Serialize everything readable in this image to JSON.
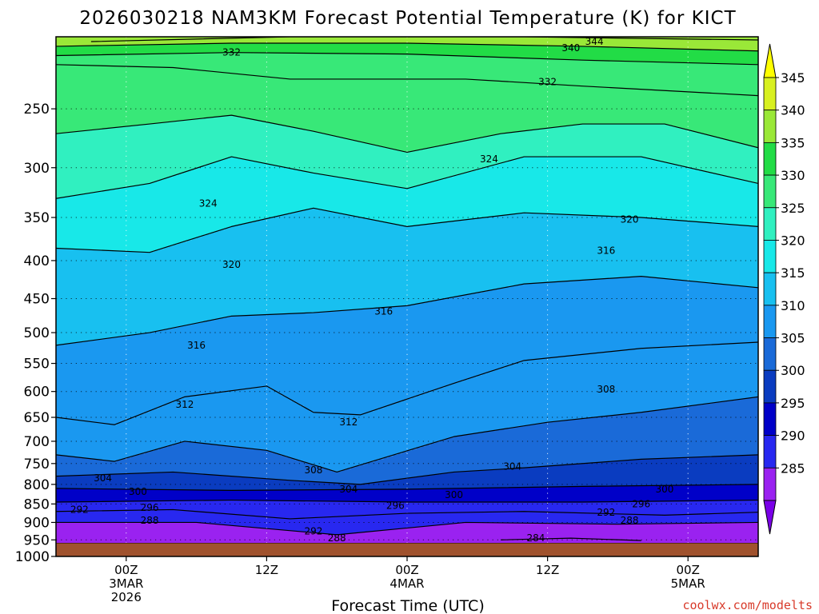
{
  "colors": {
    "ground": "#a0522d",
    "credit": "#d83a2a",
    "bands": [
      "#7a00e8",
      "#9a22f0",
      "#2828f0",
      "#0000c8",
      "#0a3cc0",
      "#1a6ad8",
      "#1a98f0",
      "#18c0f0",
      "#18e8e8",
      "#30f0c0",
      "#38e878",
      "#22dc46",
      "#9ae838",
      "#d8f020",
      "#ffff00"
    ]
  },
  "chart_data": {
    "type": "heatmap",
    "title": "2026030218 NAM3KM Forecast Potential Temperature (K) for KICT",
    "xlabel": "Forecast Time (UTC)",
    "ylabel": "",
    "x_ticks": [
      {
        "hour": 6,
        "lines": [
          "00Z",
          "3MAR",
          "2026"
        ]
      },
      {
        "hour": 18,
        "lines": [
          "12Z"
        ]
      },
      {
        "hour": 30,
        "lines": [
          "00Z",
          "4MAR"
        ]
      },
      {
        "hour": 42,
        "lines": [
          "12Z"
        ]
      },
      {
        "hour": 54,
        "lines": [
          "00Z",
          "5MAR"
        ]
      }
    ],
    "xlim": [
      0,
      60
    ],
    "y_ticks": [
      "250",
      "300",
      "350",
      "400",
      "450",
      "500",
      "550",
      "600",
      "650",
      "700",
      "750",
      "800",
      "850",
      "900",
      "950",
      "1000"
    ],
    "ylim": [
      200,
      1000
    ],
    "y_scale": "log",
    "colorbar": {
      "levels": [
        "345",
        "340",
        "335",
        "330",
        "325",
        "320",
        "315",
        "310",
        "305",
        "300",
        "295",
        "290",
        "285"
      ],
      "range": [
        280,
        350
      ],
      "interval": 5
    },
    "contour_interval": 4,
    "contours": [
      {
        "value": 344,
        "points": [
          [
            3,
            203
          ],
          [
            20,
            200
          ],
          [
            40,
            200
          ],
          [
            60,
            202
          ]
        ]
      },
      {
        "value": 340,
        "points": [
          [
            0,
            206
          ],
          [
            15,
            204
          ],
          [
            30,
            204
          ],
          [
            45,
            206
          ],
          [
            60,
            209
          ]
        ]
      },
      {
        "value": 336,
        "points": [
          [
            0,
            212
          ],
          [
            15,
            210
          ],
          [
            30,
            211
          ],
          [
            45,
            215
          ],
          [
            60,
            218
          ]
        ]
      },
      {
        "value": 332,
        "points": [
          [
            0,
            218
          ],
          [
            10,
            220
          ],
          [
            20,
            228
          ],
          [
            35,
            228
          ],
          [
            45,
            233
          ],
          [
            60,
            240
          ]
        ]
      },
      {
        "value": 328,
        "points": [
          [
            0,
            270
          ],
          [
            8,
            262
          ],
          [
            15,
            255
          ],
          [
            22,
            268
          ],
          [
            30,
            286
          ],
          [
            38,
            270
          ],
          [
            45,
            262
          ],
          [
            52,
            262
          ],
          [
            60,
            282
          ]
        ]
      },
      {
        "value": 324,
        "points": [
          [
            0,
            330
          ],
          [
            8,
            315
          ],
          [
            15,
            290
          ],
          [
            22,
            305
          ],
          [
            30,
            320
          ],
          [
            40,
            290
          ],
          [
            50,
            290
          ],
          [
            60,
            315
          ]
        ]
      },
      {
        "value": 320,
        "points": [
          [
            0,
            385
          ],
          [
            8,
            390
          ],
          [
            15,
            360
          ],
          [
            22,
            340
          ],
          [
            30,
            360
          ],
          [
            40,
            345
          ],
          [
            50,
            350
          ],
          [
            60,
            360
          ]
        ]
      },
      {
        "value": 316,
        "points": [
          [
            0,
            520
          ],
          [
            8,
            500
          ],
          [
            15,
            475
          ],
          [
            22,
            470
          ],
          [
            30,
            460
          ],
          [
            40,
            430
          ],
          [
            50,
            420
          ],
          [
            60,
            435
          ]
        ]
      },
      {
        "value": 312,
        "points": [
          [
            0,
            650
          ],
          [
            5,
            665
          ],
          [
            11,
            610
          ],
          [
            18,
            590
          ],
          [
            22,
            640
          ],
          [
            26,
            645
          ],
          [
            34,
            585
          ],
          [
            40,
            545
          ],
          [
            50,
            525
          ],
          [
            60,
            515
          ]
        ]
      },
      {
        "value": 308,
        "points": [
          [
            0,
            730
          ],
          [
            5,
            745
          ],
          [
            11,
            700
          ],
          [
            18,
            720
          ],
          [
            24,
            770
          ],
          [
            34,
            690
          ],
          [
            42,
            660
          ],
          [
            50,
            640
          ],
          [
            60,
            610
          ]
        ]
      },
      {
        "value": 304,
        "points": [
          [
            0,
            780
          ],
          [
            10,
            770
          ],
          [
            20,
            790
          ],
          [
            26,
            800
          ],
          [
            34,
            770
          ],
          [
            40,
            760
          ],
          [
            50,
            740
          ],
          [
            60,
            730
          ]
        ]
      },
      {
        "value": 300,
        "points": [
          [
            0,
            810
          ],
          [
            15,
            815
          ],
          [
            30,
            812
          ],
          [
            45,
            805
          ],
          [
            60,
            800
          ]
        ]
      },
      {
        "value": 296,
        "points": [
          [
            0,
            845
          ],
          [
            15,
            840
          ],
          [
            30,
            845
          ],
          [
            45,
            845
          ],
          [
            60,
            840
          ]
        ]
      },
      {
        "value": 292,
        "points": [
          [
            0,
            870
          ],
          [
            10,
            865
          ],
          [
            20,
            890
          ],
          [
            30,
            875
          ],
          [
            40,
            870
          ],
          [
            52,
            880
          ],
          [
            60,
            872
          ]
        ]
      },
      {
        "value": 288,
        "points": [
          [
            0,
            900
          ],
          [
            12,
            900
          ],
          [
            24,
            935
          ],
          [
            35,
            900
          ],
          [
            48,
            905
          ],
          [
            60,
            900
          ]
        ]
      },
      {
        "value": 284,
        "points": [
          [
            38,
            950
          ],
          [
            44,
            945
          ],
          [
            50,
            952
          ]
        ]
      }
    ],
    "contour_labels": [
      {
        "text": "344",
        "x": 46,
        "y": 203
      },
      {
        "text": "340",
        "x": 44,
        "y": 207
      },
      {
        "text": "332",
        "x": 15,
        "y": 210
      },
      {
        "text": "332",
        "x": 42,
        "y": 230
      },
      {
        "text": "324",
        "x": 37,
        "y": 292
      },
      {
        "text": "324",
        "x": 13,
        "y": 335
      },
      {
        "text": "320",
        "x": 49,
        "y": 352
      },
      {
        "text": "316",
        "x": 47,
        "y": 388
      },
      {
        "text": "320",
        "x": 15,
        "y": 405
      },
      {
        "text": "316",
        "x": 28,
        "y": 468
      },
      {
        "text": "316",
        "x": 12,
        "y": 520
      },
      {
        "text": "308",
        "x": 47,
        "y": 596
      },
      {
        "text": "312",
        "x": 11,
        "y": 625
      },
      {
        "text": "312",
        "x": 25,
        "y": 660
      },
      {
        "text": "304",
        "x": 39,
        "y": 757
      },
      {
        "text": "308",
        "x": 22,
        "y": 765
      },
      {
        "text": "304",
        "x": 4,
        "y": 785
      },
      {
        "text": "304",
        "x": 25,
        "y": 812
      },
      {
        "text": "300",
        "x": 52,
        "y": 812
      },
      {
        "text": "300",
        "x": 7,
        "y": 818
      },
      {
        "text": "300",
        "x": 34,
        "y": 826
      },
      {
        "text": "296",
        "x": 29,
        "y": 855
      },
      {
        "text": "296",
        "x": 50,
        "y": 850
      },
      {
        "text": "296",
        "x": 8,
        "y": 860
      },
      {
        "text": "292",
        "x": 2,
        "y": 865
      },
      {
        "text": "292",
        "x": 47,
        "y": 873
      },
      {
        "text": "288",
        "x": 49,
        "y": 895
      },
      {
        "text": "288",
        "x": 8,
        "y": 895
      },
      {
        "text": "292",
        "x": 22,
        "y": 925
      },
      {
        "text": "288",
        "x": 24,
        "y": 945
      },
      {
        "text": "284",
        "x": 41,
        "y": 945
      }
    ]
  },
  "credit": "coolwx.com/modelts"
}
